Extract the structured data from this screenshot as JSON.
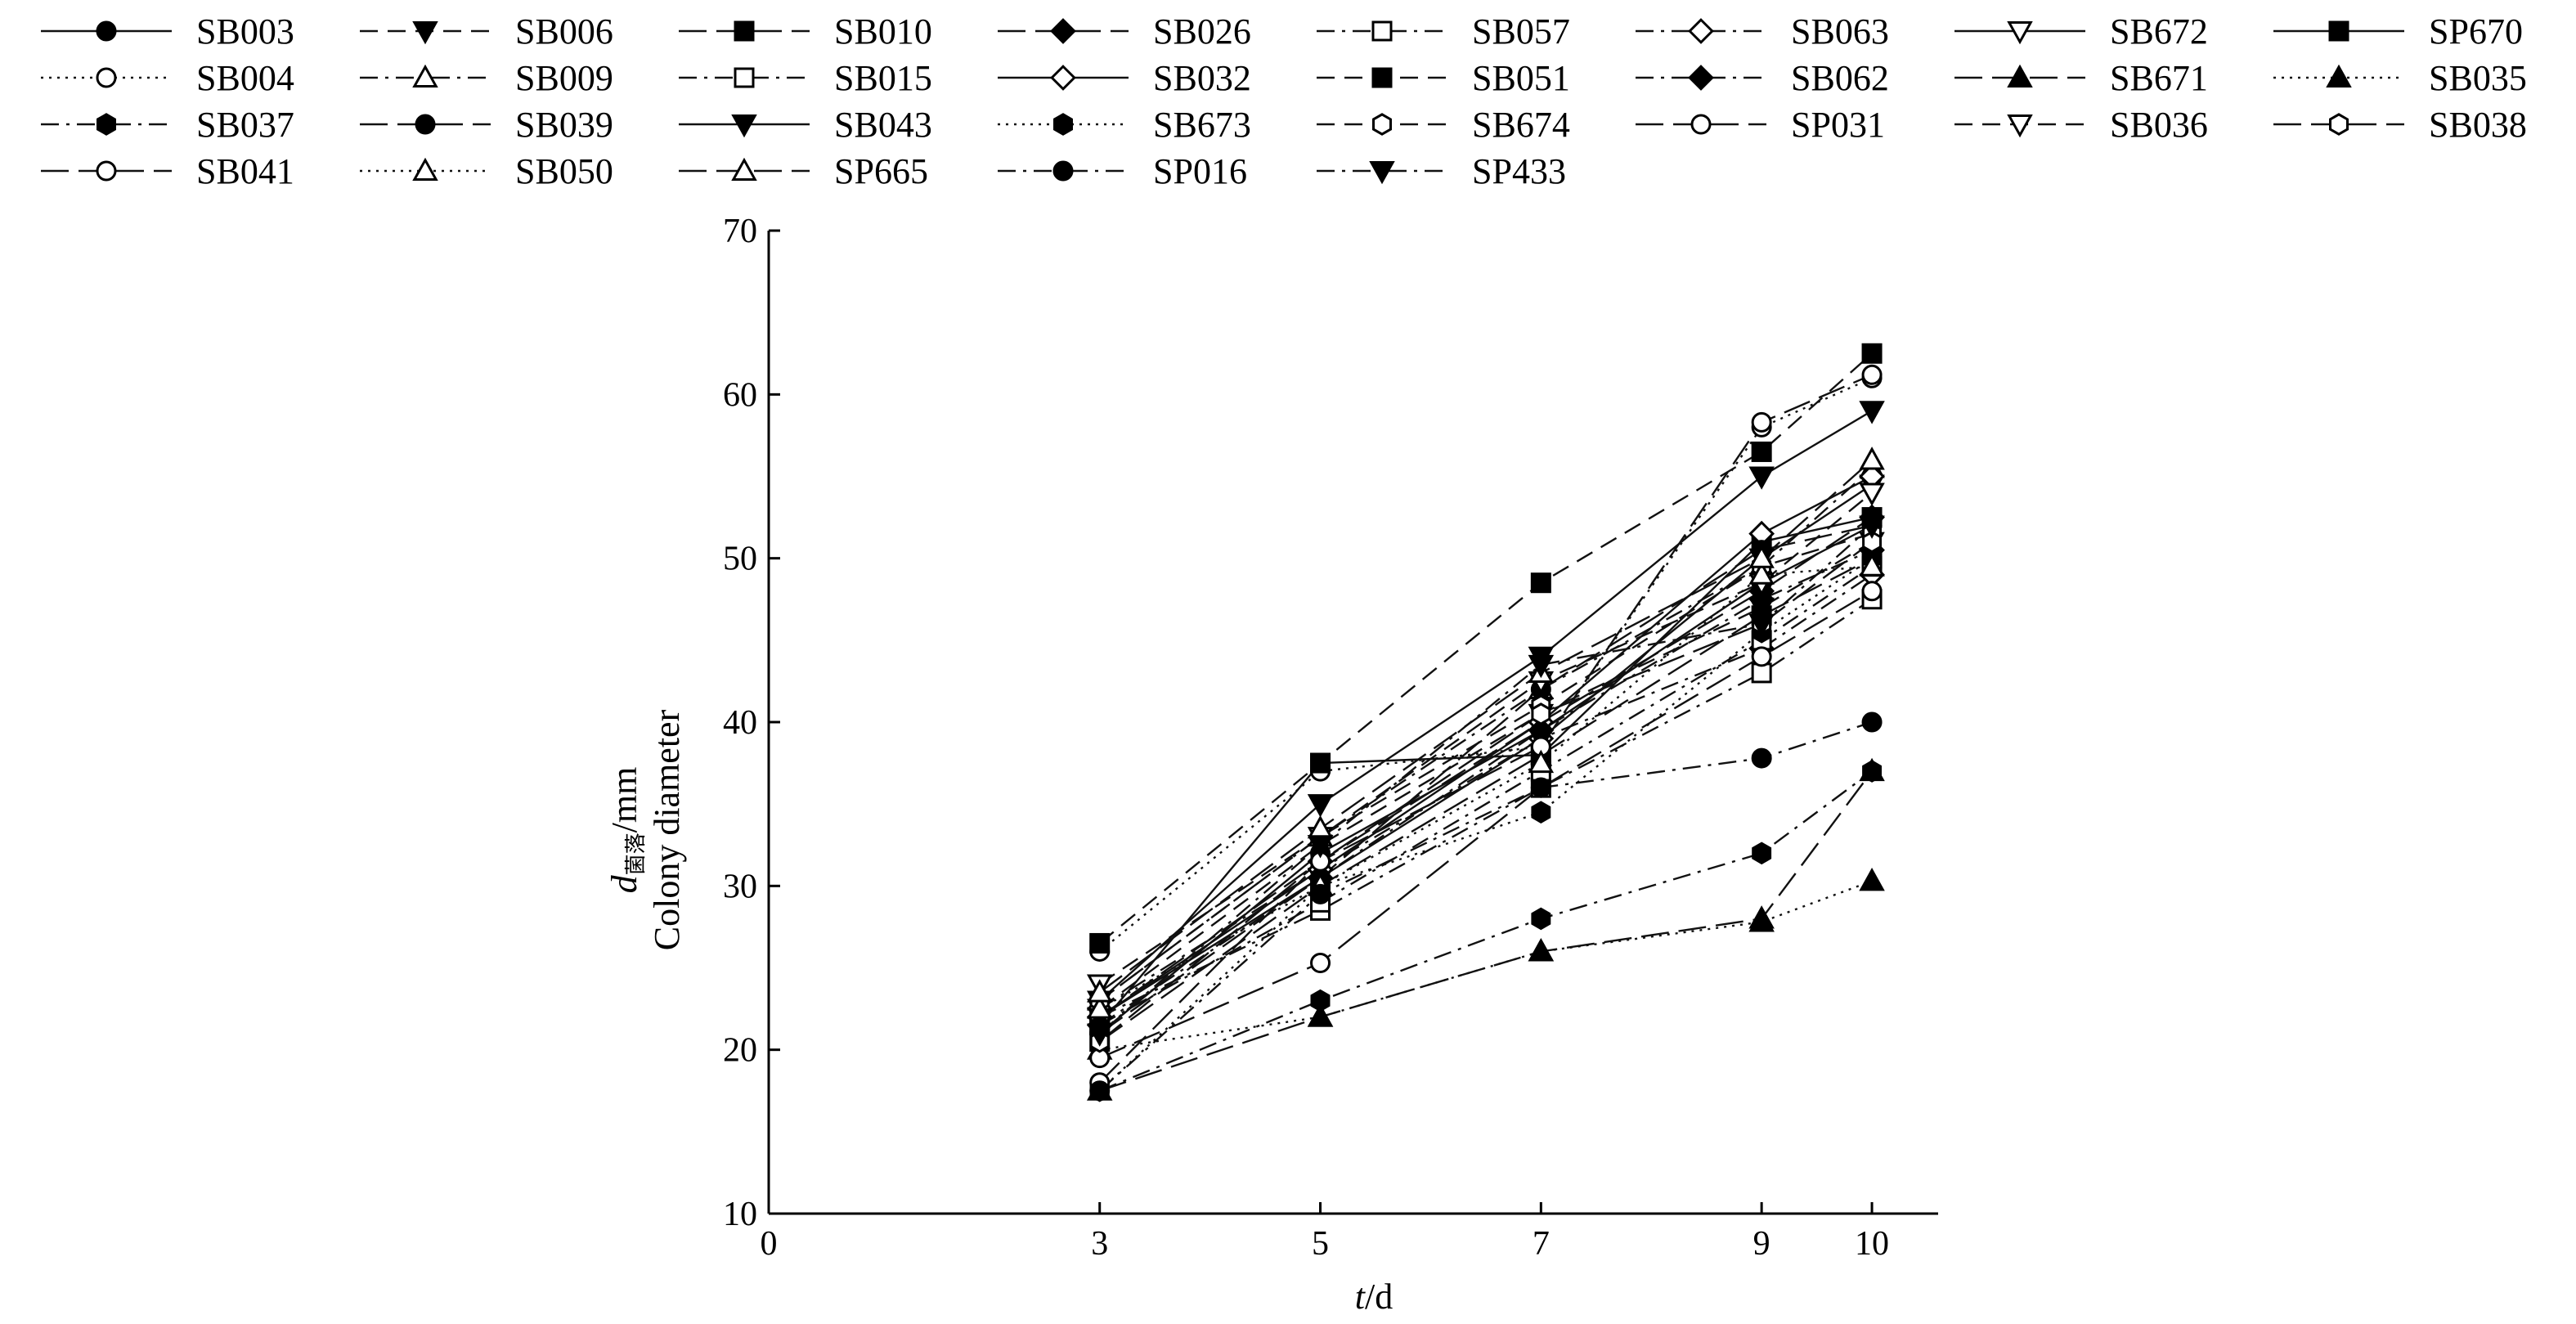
{
  "chart_data": {
    "type": "line",
    "title": "",
    "xlabel": "t/d",
    "ylabel": {
      "symbol": "d",
      "subscript": "菌落",
      "unit": "/mm",
      "english": "Colony diameter"
    },
    "x": [
      3,
      5,
      7,
      9,
      10
    ],
    "xticks": [
      0,
      3,
      5,
      7,
      9,
      10
    ],
    "xlim": [
      0,
      10.6
    ],
    "yticks": [
      10,
      20,
      30,
      40,
      50,
      60,
      70
    ],
    "ylim": [
      10,
      70
    ],
    "grid": false,
    "legend_position": "top",
    "series": [
      {
        "name": "SB003",
        "marker": "circle-filled",
        "dash": "solid",
        "values": [
          21.0,
          32.0,
          39.5,
          48.5,
          52.0
        ]
      },
      {
        "name": "SB006",
        "marker": "tri-down-filled",
        "dash": "dashed",
        "values": [
          22.5,
          32.5,
          40.5,
          47.0,
          51.0
        ]
      },
      {
        "name": "SB010",
        "marker": "square-filled",
        "dash": "longdash",
        "values": [
          20.5,
          30.0,
          38.0,
          46.5,
          50.0
        ]
      },
      {
        "name": "SB026",
        "marker": "diamond-filled",
        "dash": "longdash",
        "values": [
          22.0,
          31.5,
          40.0,
          48.0,
          52.5
        ]
      },
      {
        "name": "SB057",
        "marker": "square-open",
        "dash": "dashdot",
        "values": [
          22.0,
          28.5,
          36.0,
          43.0,
          47.5
        ]
      },
      {
        "name": "SB063",
        "marker": "diamond-open",
        "dash": "dashdot",
        "values": [
          22.5,
          31.0,
          39.0,
          44.5,
          49.0
        ]
      },
      {
        "name": "SB672",
        "marker": "tri-down-open",
        "dash": "solid",
        "values": [
          22.0,
          30.5,
          39.0,
          50.0,
          54.5
        ]
      },
      {
        "name": "SP670",
        "marker": "square-filled",
        "dash": "solid",
        "values": [
          21.5,
          37.5,
          38.0,
          51.0,
          52.5
        ]
      },
      {
        "name": "SB004",
        "marker": "circle-open",
        "dash": "dotted",
        "values": [
          26.0,
          37.0,
          38.5,
          58.0,
          61.0
        ]
      },
      {
        "name": "SB009",
        "marker": "tri-up-open",
        "dash": "dashdot",
        "values": [
          23.0,
          33.0,
          42.0,
          49.5,
          55.5
        ]
      },
      {
        "name": "SB015",
        "marker": "square-open",
        "dash": "dashdot",
        "values": [
          21.5,
          29.0,
          37.0,
          45.0,
          49.5
        ]
      },
      {
        "name": "SB032",
        "marker": "diamond-open",
        "dash": "solid",
        "values": [
          22.0,
          31.0,
          40.0,
          51.5,
          55.0
        ]
      },
      {
        "name": "SB051",
        "marker": "square-filled",
        "dash": "dashed",
        "values": [
          26.5,
          37.5,
          48.5,
          56.5,
          62.5
        ]
      },
      {
        "name": "SB062",
        "marker": "diamond-filled",
        "dash": "dashdot",
        "values": [
          21.5,
          30.5,
          39.5,
          47.5,
          50.5
        ]
      },
      {
        "name": "SB671",
        "marker": "tri-up-filled",
        "dash": "longdash",
        "values": [
          17.5,
          22.0,
          26.0,
          28.0,
          37.0
        ]
      },
      {
        "name": "SB035",
        "marker": "tri-up-filled",
        "dash": "dotted",
        "values": [
          20.0,
          22.0,
          26.0,
          27.8,
          30.3
        ]
      },
      {
        "name": "SB037",
        "marker": "hexagon-filled",
        "dash": "dashdot",
        "values": [
          17.5,
          23.0,
          28.0,
          32.0,
          37.0
        ]
      },
      {
        "name": "SB039",
        "marker": "circle-filled",
        "dash": "longdash",
        "values": [
          21.0,
          30.5,
          42.0,
          50.5,
          52.0
        ]
      },
      {
        "name": "SB043",
        "marker": "tri-down-filled",
        "dash": "solid",
        "values": [
          23.0,
          35.0,
          44.0,
          55.0,
          59.0
        ]
      },
      {
        "name": "SB673",
        "marker": "hexagon-filled",
        "dash": "dotted",
        "values": [
          17.5,
          30.0,
          34.5,
          45.5,
          50.0
        ]
      },
      {
        "name": "SB674",
        "marker": "hexagon-open",
        "dash": "dashed",
        "values": [
          23.0,
          33.0,
          41.0,
          49.5,
          51.5
        ]
      },
      {
        "name": "SP031",
        "marker": "circle-open",
        "dash": "longdash",
        "values": [
          19.5,
          25.3,
          36.0,
          44.0,
          48.0
        ]
      },
      {
        "name": "SB036",
        "marker": "tri-down-open",
        "dash": "dashed",
        "values": [
          24.0,
          33.0,
          42.5,
          48.5,
          54.0
        ]
      },
      {
        "name": "SB038",
        "marker": "hexagon-open",
        "dash": "longdash",
        "values": [
          20.5,
          31.5,
          40.5,
          46.0,
          51.0
        ]
      },
      {
        "name": "SB041",
        "marker": "circle-open",
        "dash": "longdash",
        "values": [
          18.0,
          31.5,
          38.5,
          58.3,
          61.2
        ]
      },
      {
        "name": "SB050",
        "marker": "tri-up-open",
        "dash": "dotted",
        "values": [
          22.5,
          30.0,
          37.5,
          49.0,
          49.5
        ]
      },
      {
        "name": "SP665",
        "marker": "tri-up-open",
        "dash": "longdash",
        "values": [
          23.5,
          33.5,
          43.0,
          50.0,
          56.0
        ]
      },
      {
        "name": "SP016",
        "marker": "circle-filled",
        "dash": "dashdot",
        "values": [
          17.5,
          29.5,
          36.0,
          37.8,
          40.0
        ]
      },
      {
        "name": "SP433",
        "marker": "tri-down-filled",
        "dash": "dashdot",
        "values": [
          21.0,
          32.5,
          43.5,
          46.0,
          52.0
        ]
      }
    ]
  }
}
